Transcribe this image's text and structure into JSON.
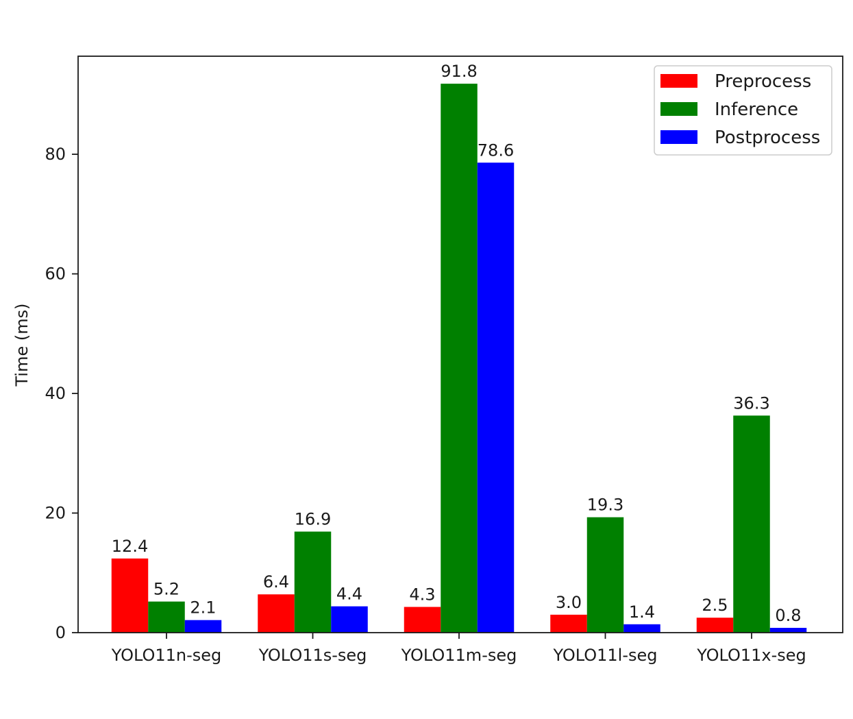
{
  "chart_data": {
    "type": "bar",
    "title": "",
    "xlabel": "",
    "ylabel": "Time (ms)",
    "categories": [
      "YOLO11n-seg",
      "YOLO11s-seg",
      "YOLO11m-seg",
      "YOLO11l-seg",
      "YOLO11x-seg"
    ],
    "series": [
      {
        "name": "Preprocess",
        "color": "#ff0000",
        "values": [
          12.4,
          6.4,
          4.3,
          3.0,
          2.5
        ],
        "labels": [
          "12.4",
          "6.4",
          "4.3",
          "3.0",
          "2.5"
        ]
      },
      {
        "name": "Inference",
        "color": "#008000",
        "values": [
          5.2,
          16.9,
          91.8,
          19.3,
          36.3
        ],
        "labels": [
          "5.2",
          "16.9",
          "91.8",
          "19.3",
          "36.3"
        ]
      },
      {
        "name": "Postprocess",
        "color": "#0000ff",
        "values": [
          2.1,
          4.4,
          78.6,
          1.4,
          0.8
        ],
        "labels": [
          "2.1",
          "4.4",
          "78.6",
          "1.4",
          "0.8"
        ]
      }
    ],
    "ylim": [
      0,
      96.4
    ],
    "yticks": [
      0,
      20,
      40,
      60,
      80
    ],
    "ytick_labels": [
      "0",
      "20",
      "40",
      "60",
      "80"
    ],
    "legend_position": "top-right",
    "grid": false
  }
}
